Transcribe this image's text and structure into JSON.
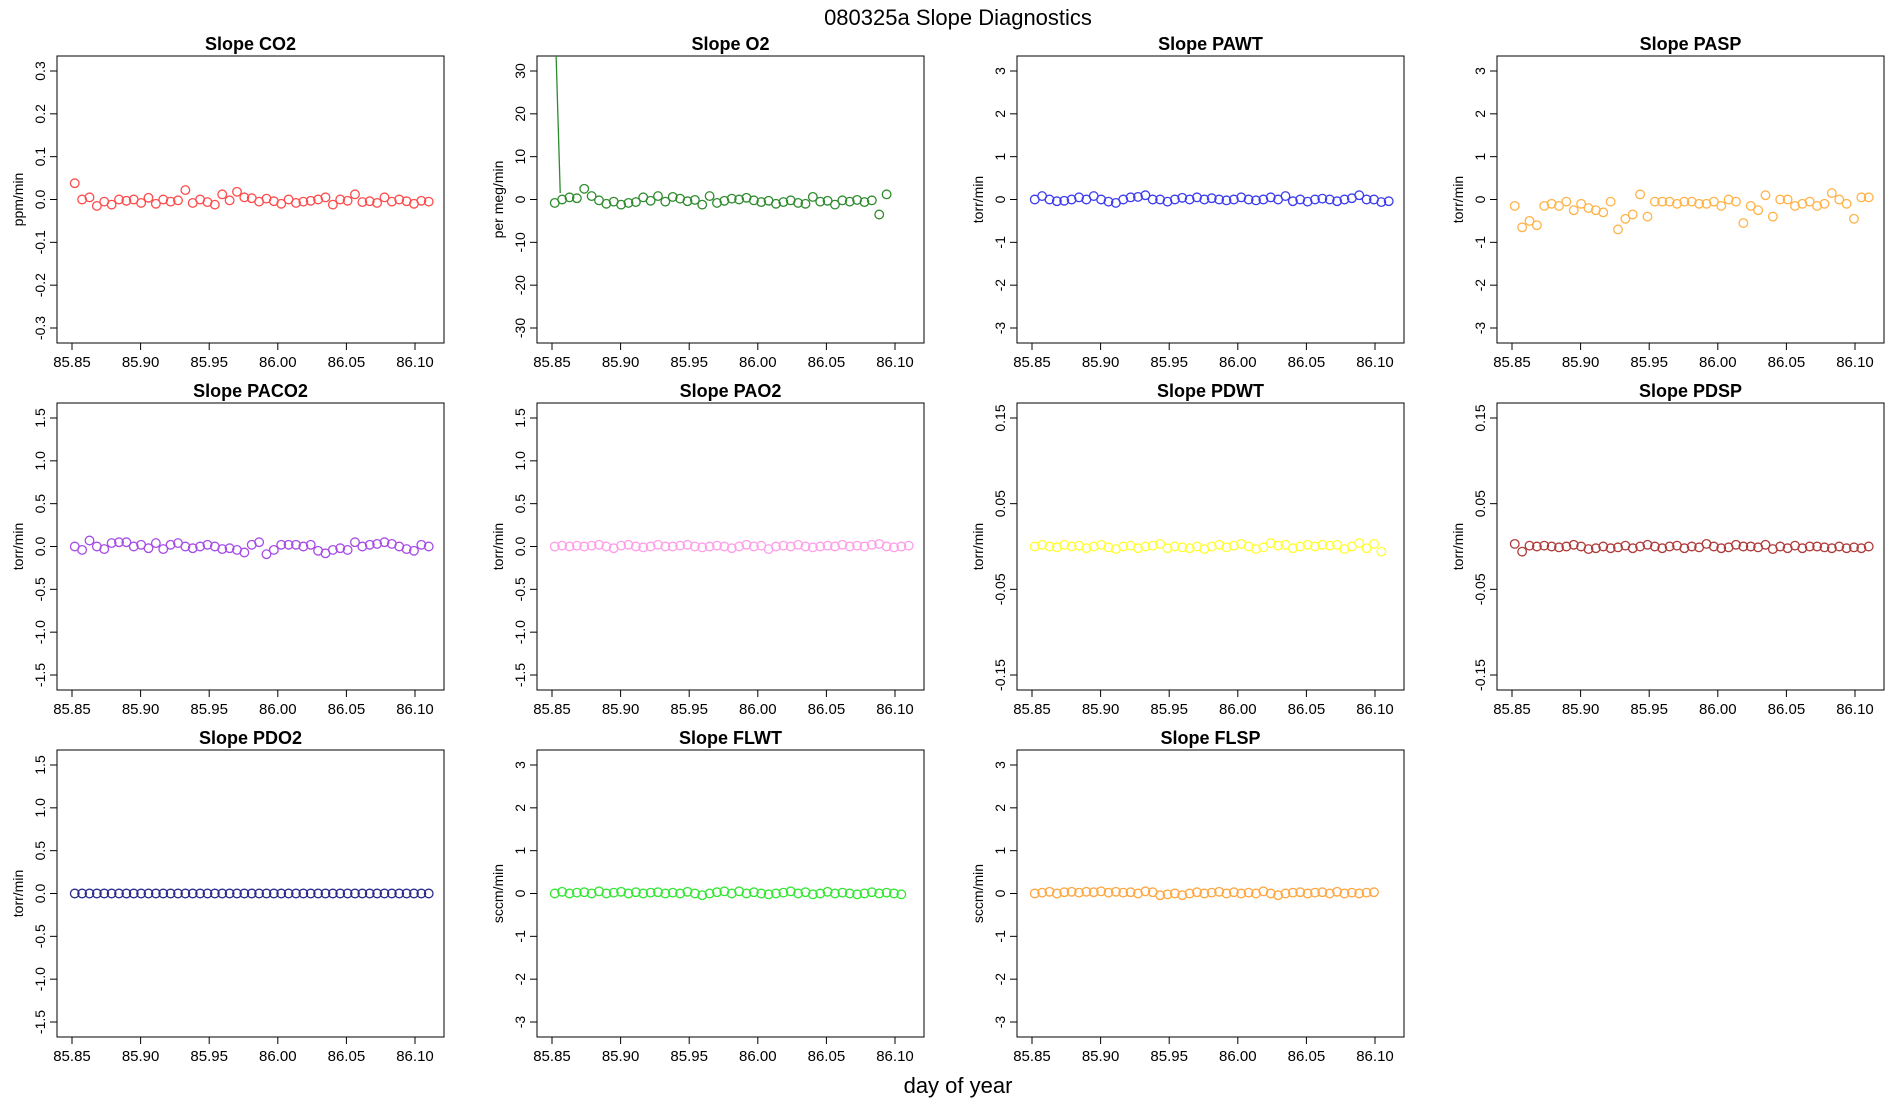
{
  "figure": {
    "title": "080325a   Slope Diagnostics",
    "xlabel": "day of year"
  },
  "chart_data": [
    {
      "type": "scatter",
      "title": "Slope CO2",
      "ylabel": "ppm/min",
      "color": "#ff4b4b",
      "xlim": [
        85.85,
        86.11
      ],
      "ylim": [
        -0.3,
        0.3
      ],
      "xticks": [
        "85.85",
        "85.90",
        "85.95",
        "86.00",
        "86.05",
        "86.10"
      ],
      "yticks": [
        "-0.3",
        "-0.2",
        "-0.1",
        "0.0",
        "0.1",
        "0.2",
        "0.3"
      ],
      "values": [
        0.038,
        0.0,
        0.005,
        -0.015,
        -0.005,
        -0.012,
        0.0,
        -0.003,
        0.0,
        -0.008,
        0.004,
        -0.01,
        0.0,
        -0.005,
        -0.002,
        0.022,
        -0.008,
        0.0,
        -0.006,
        -0.012,
        0.012,
        -0.002,
        0.018,
        0.005,
        0.003,
        -0.005,
        0.002,
        -0.004,
        -0.01,
        0.0,
        -0.008,
        -0.005,
        -0.003,
        0.0,
        0.005,
        -0.012,
        0.0,
        -0.003,
        0.012,
        -0.006,
        -0.004,
        -0.008,
        0.005,
        -0.005,
        0.0,
        -0.004,
        -0.01,
        -0.003,
        -0.005
      ]
    },
    {
      "type": "scatter",
      "title": "Slope O2",
      "ylabel": "per meg/min",
      "color": "#2e8b2e",
      "xlim": [
        85.85,
        86.11
      ],
      "ylim": [
        -30,
        30
      ],
      "xticks": [
        "85.85",
        "85.90",
        "85.95",
        "86.00",
        "86.05",
        "86.10"
      ],
      "yticks": [
        "-30",
        "-20",
        "-10",
        "0",
        "10",
        "20",
        "30"
      ],
      "spike": {
        "from_x": 85.853,
        "from_y": 36,
        "to_x": 85.856,
        "to_y": 1.5
      },
      "values": [
        -0.8,
        0.0,
        0.5,
        0.3,
        2.5,
        0.8,
        -0.2,
        -1.0,
        -0.5,
        -1.2,
        -0.8,
        -0.6,
        0.5,
        -0.3,
        0.8,
        -0.5,
        0.6,
        0.2,
        -0.4,
        -0.1,
        -1.2,
        0.8,
        -0.8,
        -0.3,
        0.2,
        0.0,
        0.4,
        -0.2,
        -0.6,
        -0.3,
        -1.0,
        -0.6,
        -0.2,
        -0.8,
        -1.0,
        0.6,
        -0.5,
        -0.3,
        -1.2,
        -0.2,
        -0.5,
        -0.1,
        -0.6,
        -0.2,
        -3.5,
        1.2,
        null,
        null,
        null
      ]
    },
    {
      "type": "scatter",
      "title": "Slope PAWT",
      "ylabel": "torr/min",
      "color": "#3b3bf0",
      "xlim": [
        85.85,
        86.11
      ],
      "ylim": [
        -3,
        3
      ],
      "xticks": [
        "85.85",
        "85.90",
        "85.95",
        "86.00",
        "86.05",
        "86.10"
      ],
      "yticks": [
        "-3",
        "-2",
        "-1",
        "0",
        "1",
        "2",
        "3"
      ],
      "values": [
        0.0,
        0.08,
        0.0,
        -0.04,
        -0.03,
        0.0,
        0.05,
        0.0,
        0.08,
        0.0,
        -0.05,
        -0.08,
        0.0,
        0.05,
        0.06,
        0.1,
        0.0,
        0.0,
        -0.05,
        0.0,
        0.04,
        0.0,
        0.05,
        0.0,
        0.03,
        0.0,
        -0.02,
        0.0,
        0.05,
        0.0,
        -0.02,
        0.0,
        0.05,
        0.0,
        0.08,
        -0.04,
        0.0,
        -0.05,
        0.0,
        0.02,
        0.0,
        -0.04,
        0.0,
        0.03,
        0.1,
        0.0,
        0.0,
        -0.06,
        -0.04
      ]
    },
    {
      "type": "scatter",
      "title": "Slope PASP",
      "ylabel": "torr/min",
      "color": "#ffb347",
      "xlim": [
        85.85,
        86.11
      ],
      "ylim": [
        -3,
        3
      ],
      "xticks": [
        "85.85",
        "85.90",
        "85.95",
        "86.00",
        "86.05",
        "86.10"
      ],
      "yticks": [
        "-3",
        "-2",
        "-1",
        "0",
        "1",
        "2",
        "3"
      ],
      "values": [
        -0.15,
        -0.65,
        -0.5,
        -0.6,
        -0.15,
        -0.1,
        -0.15,
        -0.05,
        -0.25,
        -0.1,
        -0.2,
        -0.25,
        -0.3,
        -0.05,
        -0.7,
        -0.45,
        -0.35,
        0.12,
        -0.4,
        -0.05,
        -0.05,
        -0.05,
        -0.1,
        -0.05,
        -0.05,
        -0.1,
        -0.1,
        -0.05,
        -0.15,
        0.0,
        -0.05,
        -0.55,
        -0.15,
        -0.25,
        0.1,
        -0.4,
        0.0,
        0.0,
        -0.15,
        -0.1,
        -0.05,
        -0.15,
        -0.1,
        0.15,
        0.0,
        -0.1,
        -0.45,
        0.05,
        0.05
      ]
    },
    {
      "type": "scatter",
      "title": "Slope PACO2",
      "ylabel": "torr/min",
      "color": "#a64ce6",
      "xlim": [
        85.85,
        86.11
      ],
      "ylim": [
        -1.5,
        1.5
      ],
      "xticks": [
        "85.85",
        "85.90",
        "85.95",
        "86.00",
        "86.05",
        "86.10"
      ],
      "yticks": [
        "-1.5",
        "-1.0",
        "-0.5",
        "0.0",
        "0.5",
        "1.0",
        "1.5"
      ],
      "values": [
        0.0,
        -0.04,
        0.07,
        0.0,
        -0.03,
        0.04,
        0.05,
        0.05,
        0.0,
        0.02,
        -0.02,
        0.04,
        -0.03,
        0.02,
        0.04,
        0.0,
        -0.02,
        0.0,
        0.02,
        0.0,
        -0.03,
        -0.02,
        -0.04,
        -0.07,
        0.02,
        0.05,
        -0.09,
        -0.04,
        0.02,
        0.02,
        0.02,
        0.0,
        0.02,
        -0.05,
        -0.08,
        -0.04,
        -0.02,
        -0.04,
        0.05,
        0.0,
        0.02,
        0.03,
        0.05,
        0.03,
        0.0,
        -0.03,
        -0.05,
        0.02,
        0.0
      ]
    },
    {
      "type": "scatter",
      "title": "Slope PAO2",
      "ylabel": "torr/min",
      "color": "#ff9ee8",
      "xlim": [
        85.85,
        86.11
      ],
      "ylim": [
        -1.5,
        1.5
      ],
      "xticks": [
        "85.85",
        "85.90",
        "85.95",
        "86.00",
        "86.05",
        "86.10"
      ],
      "yticks": [
        "-1.5",
        "-1.0",
        "-0.5",
        "0.0",
        "0.5",
        "1.0",
        "1.5"
      ],
      "values": [
        0.0,
        0.01,
        0.0,
        0.01,
        0.0,
        0.01,
        0.02,
        0.0,
        -0.02,
        0.01,
        0.02,
        0.0,
        -0.01,
        0.0,
        0.02,
        0.0,
        0.0,
        0.01,
        0.02,
        0.0,
        -0.01,
        0.0,
        0.01,
        0.0,
        -0.02,
        0.0,
        0.02,
        0.0,
        0.01,
        -0.03,
        0.0,
        0.01,
        0.0,
        0.02,
        0.0,
        -0.01,
        0.0,
        0.01,
        0.0,
        0.02,
        0.0,
        0.01,
        0.0,
        0.02,
        0.03,
        0.0,
        -0.01,
        0.0,
        0.01
      ]
    },
    {
      "type": "scatter",
      "title": "Slope PDWT",
      "ylabel": "torr/min",
      "color": "#ffff33",
      "xlim": [
        85.85,
        86.11
      ],
      "ylim": [
        -0.15,
        0.15
      ],
      "xticks": [
        "85.85",
        "85.90",
        "85.95",
        "86.00",
        "86.05",
        "86.10"
      ],
      "yticks": [
        "-0.15",
        "-0.05",
        "0.05",
        "0.15"
      ],
      "values": [
        0.0,
        0.002,
        0.0,
        -0.001,
        0.002,
        0.0,
        0.001,
        -0.002,
        0.0,
        0.002,
        -0.001,
        -0.003,
        0.0,
        0.001,
        -0.002,
        0.0,
        0.001,
        0.003,
        -0.002,
        0.0,
        -0.001,
        -0.002,
        0.0,
        -0.003,
        0.0,
        0.002,
        -0.001,
        0.001,
        0.003,
        0.0,
        -0.003,
        -0.001,
        0.004,
        0.001,
        0.002,
        -0.002,
        0.0,
        0.002,
        0.0,
        0.002,
        0.001,
        0.002,
        -0.003,
        0.0,
        0.004,
        -0.002,
        0.003,
        -0.006,
        null
      ]
    },
    {
      "type": "scatter",
      "title": "Slope PDSP",
      "ylabel": "torr/min",
      "color": "#b03a3a",
      "xlim": [
        85.85,
        86.11
      ],
      "ylim": [
        -0.15,
        0.15
      ],
      "xticks": [
        "85.85",
        "85.90",
        "85.95",
        "86.00",
        "86.05",
        "86.10"
      ],
      "yticks": [
        "-0.15",
        "-0.05",
        "0.05",
        "0.15"
      ],
      "values": [
        0.003,
        -0.006,
        0.001,
        0.0,
        0.001,
        0.0,
        -0.001,
        0.0,
        0.002,
        0.0,
        -0.003,
        -0.002,
        0.0,
        -0.002,
        -0.001,
        0.001,
        -0.002,
        0.0,
        0.002,
        0.0,
        -0.002,
        0.0,
        0.001,
        -0.002,
        0.0,
        -0.001,
        0.003,
        0.0,
        -0.002,
        -0.001,
        0.002,
        0.0,
        0.0,
        -0.001,
        0.002,
        -0.003,
        0.0,
        -0.002,
        0.001,
        -0.002,
        0.0,
        0.0,
        -0.001,
        -0.002,
        0.0,
        -0.002,
        -0.001,
        -0.002,
        0.0
      ]
    },
    {
      "type": "scatter",
      "title": "Slope PDO2",
      "ylabel": "torr/min",
      "color": "#2b2b8f",
      "xlim": [
        85.85,
        86.11
      ],
      "ylim": [
        -1.5,
        1.5
      ],
      "xticks": [
        "85.85",
        "85.90",
        "85.95",
        "86.00",
        "86.05",
        "86.10"
      ],
      "yticks": [
        "-1.5",
        "-1.0",
        "-0.5",
        "0.0",
        "0.5",
        "1.0",
        "1.5"
      ],
      "values": [
        0,
        0,
        0,
        0,
        0,
        0,
        0,
        0,
        0,
        0,
        0,
        0,
        0,
        0,
        0,
        0,
        0,
        0,
        0,
        0,
        0,
        0,
        0,
        0,
        0,
        0,
        0,
        0,
        0,
        0,
        0,
        0,
        0,
        0,
        0,
        0,
        0,
        0,
        0,
        0,
        0,
        0,
        0,
        0,
        0,
        0,
        0,
        0,
        0
      ]
    },
    {
      "type": "scatter",
      "title": "Slope FLWT",
      "ylabel": "sccm/min",
      "color": "#33e633",
      "xlim": [
        85.85,
        86.11
      ],
      "ylim": [
        -3,
        3
      ],
      "xticks": [
        "85.85",
        "85.90",
        "85.95",
        "86.00",
        "86.05",
        "86.10"
      ],
      "yticks": [
        "-3",
        "-2",
        "-1",
        "0",
        "1",
        "2",
        "3"
      ],
      "values": [
        0.0,
        0.04,
        0.0,
        0.02,
        0.03,
        0.0,
        0.05,
        0.0,
        0.02,
        0.04,
        0.0,
        0.03,
        0.0,
        0.02,
        0.03,
        0.0,
        0.02,
        0.0,
        0.04,
        0.0,
        -0.04,
        0.0,
        0.03,
        0.05,
        0.0,
        0.05,
        0.0,
        0.03,
        0.0,
        -0.02,
        0.0,
        0.02,
        0.05,
        0.0,
        0.03,
        -0.02,
        0.0,
        0.04,
        0.0,
        0.02,
        0.0,
        -0.02,
        0.0,
        0.03,
        0.0,
        0.02,
        0.0,
        -0.02,
        null
      ]
    },
    {
      "type": "scatter",
      "title": "Slope FLSP",
      "ylabel": "sccm/min",
      "color": "#ffa640",
      "xlim": [
        85.85,
        86.11
      ],
      "ylim": [
        -3,
        3
      ],
      "xticks": [
        "85.85",
        "85.90",
        "85.95",
        "86.00",
        "86.05",
        "86.10"
      ],
      "yticks": [
        "-3",
        "-2",
        "-1",
        "0",
        "1",
        "2",
        "3"
      ],
      "values": [
        0.0,
        0.02,
        0.04,
        0.0,
        0.03,
        0.04,
        0.02,
        0.04,
        0.03,
        0.05,
        0.02,
        0.04,
        0.02,
        0.03,
        0.0,
        0.05,
        0.03,
        -0.04,
        -0.02,
        0.0,
        -0.04,
        0.0,
        0.03,
        0.0,
        0.02,
        0.04,
        0.0,
        0.03,
        0.0,
        0.02,
        0.0,
        0.05,
        0.0,
        -0.04,
        0.0,
        0.02,
        0.03,
        0.0,
        0.02,
        0.03,
        0.0,
        0.04,
        0.0,
        0.02,
        0.0,
        0.02,
        0.03,
        null,
        null
      ]
    }
  ]
}
